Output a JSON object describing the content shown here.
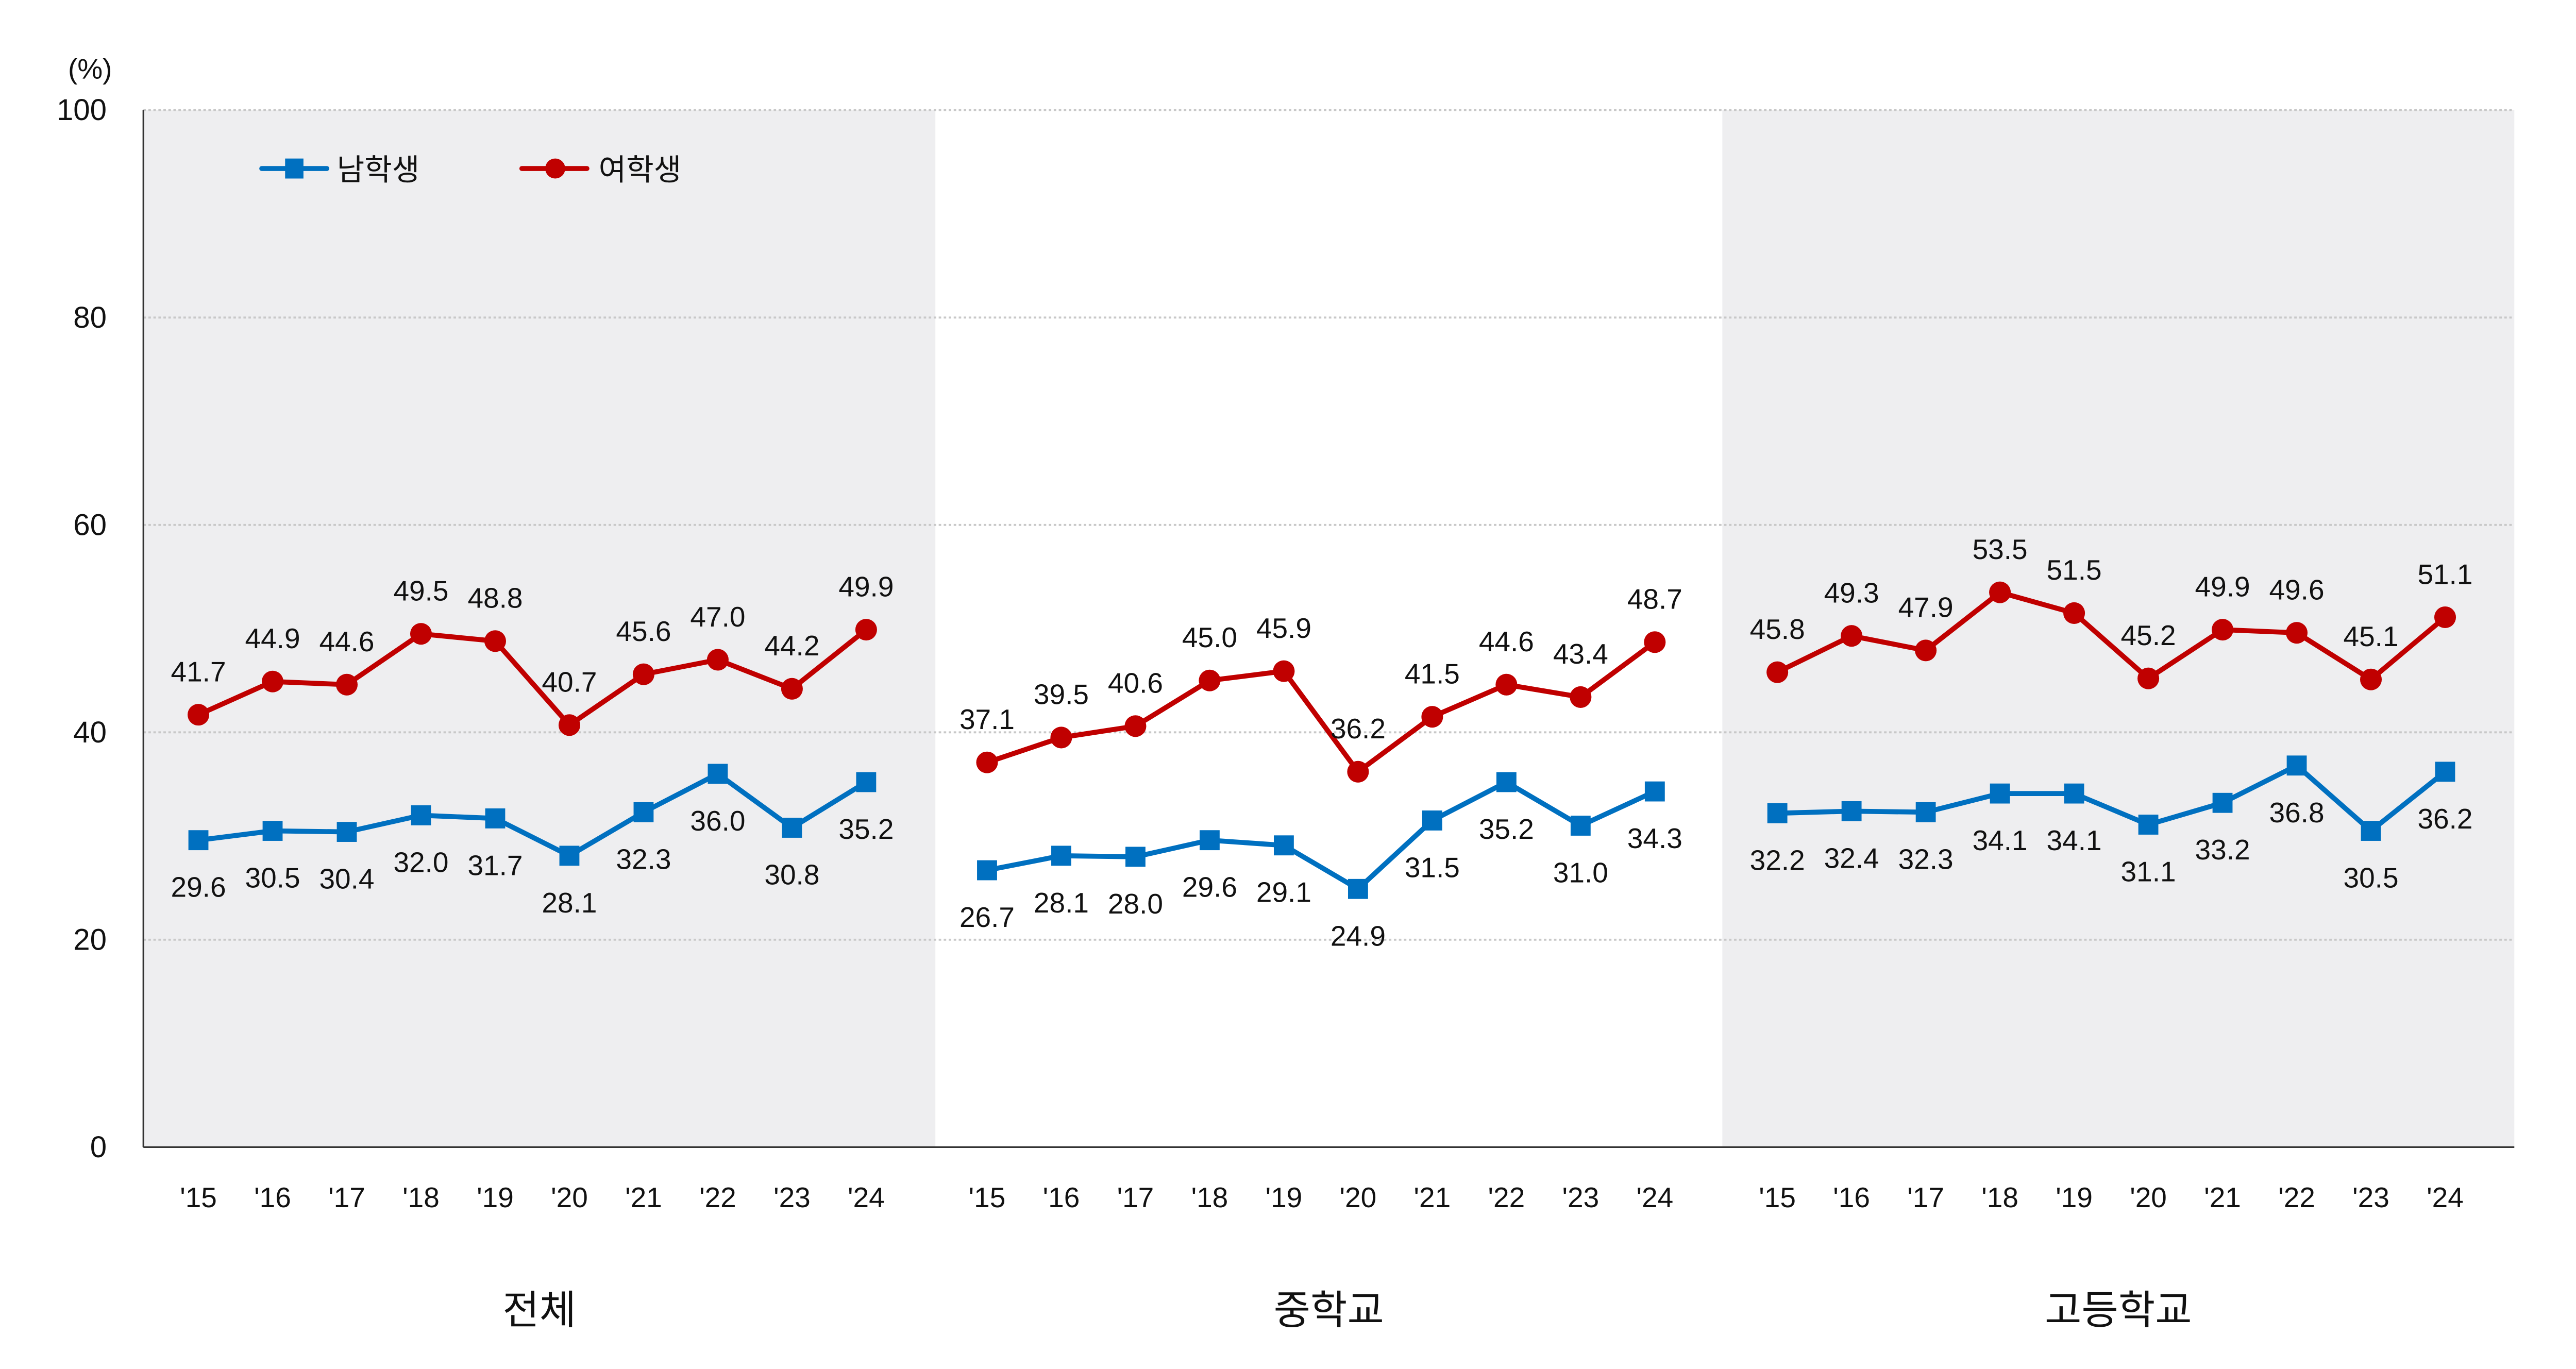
{
  "chart_data": {
    "type": "line",
    "unit_label": "(%)",
    "ylim": [
      0,
      100
    ],
    "yticks": [
      "0",
      "20",
      "40",
      "60",
      "80",
      "100"
    ],
    "grid": true,
    "legend_position": "top-left",
    "categories": [
      "'15",
      "'16",
      "'17",
      "'18",
      "'19",
      "'20",
      "'21",
      "'22",
      "'23",
      "'24"
    ],
    "colors": {
      "male": "#0070C0",
      "female": "#C00000",
      "panel_shade": "#EEEEF0"
    },
    "legend": [
      {
        "key": "male",
        "name": "남학생",
        "marker": "square"
      },
      {
        "key": "female",
        "name": "여학생",
        "marker": "circle"
      }
    ],
    "panels": [
      {
        "name": "전체",
        "shaded": true,
        "male": [
          29.6,
          30.5,
          30.4,
          32.0,
          31.7,
          28.1,
          32.3,
          36.0,
          30.8,
          35.2
        ],
        "female": [
          41.7,
          44.9,
          44.6,
          49.5,
          48.8,
          40.7,
          45.6,
          47.0,
          44.2,
          49.9
        ]
      },
      {
        "name": "중학교",
        "shaded": false,
        "male": [
          26.7,
          28.1,
          28.0,
          29.6,
          29.1,
          24.9,
          31.5,
          35.2,
          31.0,
          34.3
        ],
        "female": [
          37.1,
          39.5,
          40.6,
          45.0,
          45.9,
          36.2,
          41.5,
          44.6,
          43.4,
          48.7
        ]
      },
      {
        "name": "고등학교",
        "shaded": true,
        "male": [
          32.2,
          32.4,
          32.3,
          34.1,
          34.1,
          31.1,
          33.2,
          36.8,
          30.5,
          36.2
        ],
        "female": [
          45.8,
          49.3,
          47.9,
          53.5,
          51.5,
          45.2,
          49.9,
          49.6,
          45.1,
          51.1
        ]
      }
    ]
  }
}
